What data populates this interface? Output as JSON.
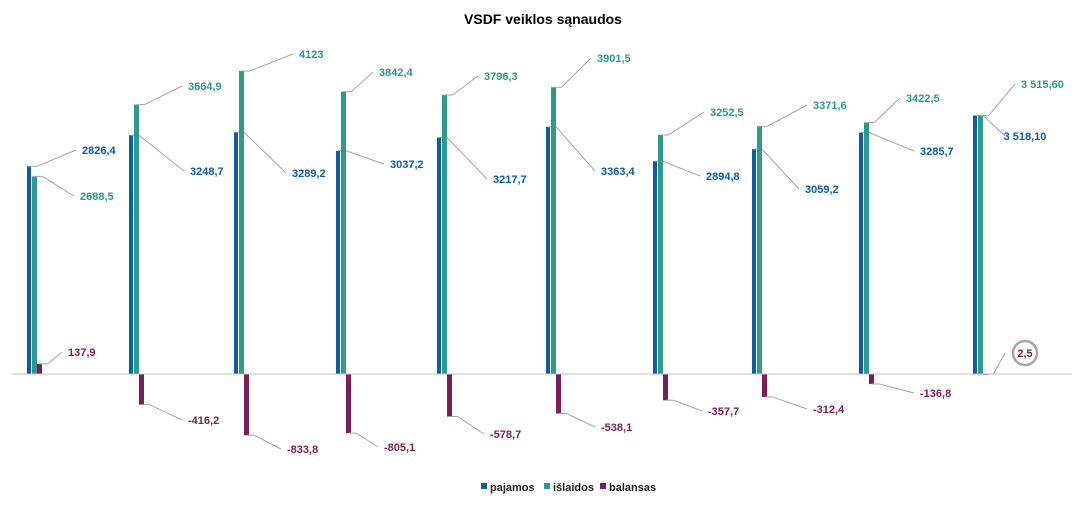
{
  "colors": {
    "pajamos": "#0e5ca8",
    "islaidos": "#2e9a8a",
    "balansas": "#7d1d57",
    "leader": "#a6a6a6",
    "axis": "#bfbfbf"
  },
  "chart_data": {
    "type": "bar",
    "title": "VSDF veiklos sąnaudos",
    "xlabel": "",
    "ylabel": "",
    "ylim": [
      -1000,
      4500
    ],
    "categories": [
      "",
      "",
      "",
      "",
      "",
      "",
      "",
      "",
      "",
      ""
    ],
    "legend_position": "bottom",
    "grid": false,
    "series": [
      {
        "name": "pajamos",
        "values": [
          2826.4,
          3248.7,
          3289.2,
          3037.2,
          3217.7,
          3363.4,
          2894.8,
          3059.2,
          3285.7,
          3518.1
        ],
        "labels": [
          "2826,4",
          "3248,7",
          "3289,2",
          "3037,2",
          "3217,7",
          "3363,4",
          "2894,8",
          "3059,2",
          "3285,7",
          "3 518,10"
        ]
      },
      {
        "name": "išlaidos",
        "values": [
          2688.5,
          3664.9,
          4123,
          3842.4,
          3796.3,
          3901.5,
          3252.5,
          3371.6,
          3422.5,
          3515.6
        ],
        "labels": [
          "2688,5",
          "3664,9",
          "4123",
          "3842,4",
          "3796,3",
          "3901,5",
          "3252,5",
          "3371,6",
          "3422,5",
          "3 515,60"
        ]
      },
      {
        "name": "balansas",
        "values": [
          137.9,
          -416.2,
          -833.8,
          -805.1,
          -578.7,
          -538.1,
          -357.7,
          -312.4,
          -136.8,
          2.5
        ],
        "labels": [
          "137,9",
          "-416,2",
          "-833,8",
          "-805,1",
          "-578,7",
          "-538,1",
          "-357,7",
          "-312,4",
          "-136,8",
          "2,5"
        ]
      }
    ]
  }
}
